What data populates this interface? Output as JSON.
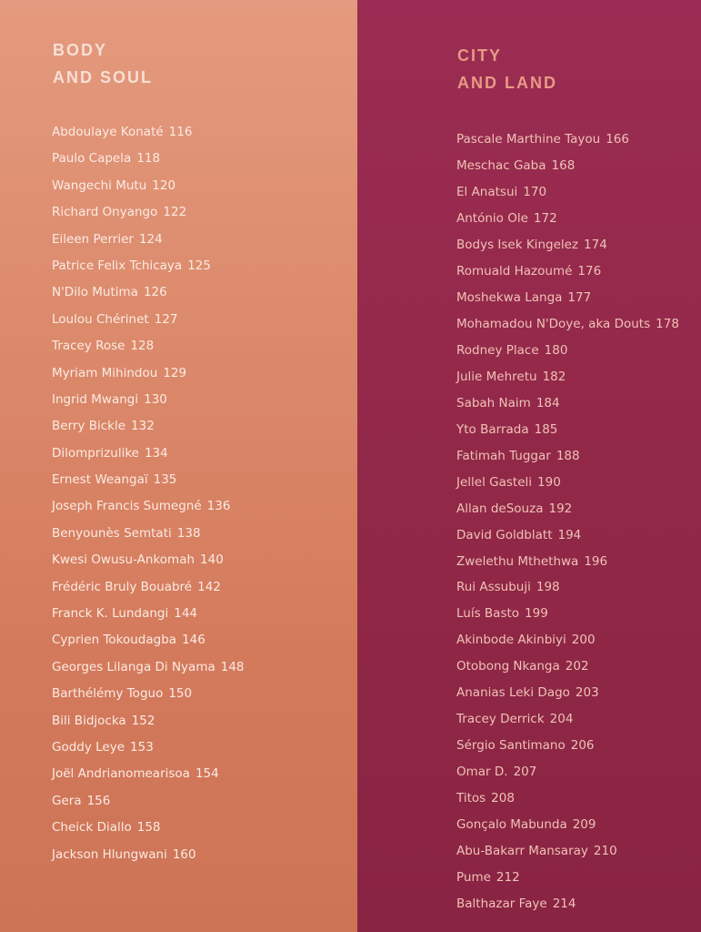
{
  "left_column": {
    "title_line1": "BODY",
    "title_line2": "AND SOUL",
    "entries": [
      {
        "name": "Abdoulaye Konaté",
        "page": "116"
      },
      {
        "name": "Paulo Capela",
        "page": "118"
      },
      {
        "name": "Wangechi Mutu",
        "page": "120"
      },
      {
        "name": "Richard Onyango",
        "page": "122"
      },
      {
        "name": "Eileen Perrier",
        "page": "124"
      },
      {
        "name": "Patrice Felix Tchicaya",
        "page": "125"
      },
      {
        "name": "N'Dilo Mutima",
        "page": "126"
      },
      {
        "name": "Loulou Chérinet",
        "page": "127"
      },
      {
        "name": "Tracey Rose",
        "page": "128"
      },
      {
        "name": "Myriam Mihindou",
        "page": "129"
      },
      {
        "name": "Ingrid Mwangi",
        "page": "130"
      },
      {
        "name": "Berry Bickle",
        "page": "132"
      },
      {
        "name": "Dilomprizulike",
        "page": "134"
      },
      {
        "name": "Ernest Weangaï",
        "page": "135"
      },
      {
        "name": "Joseph Francis Sumegné",
        "page": "136"
      },
      {
        "name": "Benyounès Semtati",
        "page": "138"
      },
      {
        "name": "Kwesi Owusu-Ankomah",
        "page": "140"
      },
      {
        "name": "Frédéric Bruly Bouabré",
        "page": "142"
      },
      {
        "name": "Franck K. Lundangi",
        "page": "144"
      },
      {
        "name": "Cyprien Tokoudagba",
        "page": "146"
      },
      {
        "name": "Georges Lilanga Di Nyama",
        "page": "148"
      },
      {
        "name": "Barthélémy Toguo",
        "page": "150"
      },
      {
        "name": "Bili Bidjocka",
        "page": "152"
      },
      {
        "name": "Goddy Leye",
        "page": "153"
      },
      {
        "name": "Joël Andrianomearisoa",
        "page": "154"
      },
      {
        "name": "Gera",
        "page": "156"
      },
      {
        "name": "Cheick Diallo",
        "page": "158"
      },
      {
        "name": "Jackson Hlungwani",
        "page": "160"
      }
    ]
  },
  "right_column": {
    "title_line1": "CITY",
    "title_line2": "AND LAND",
    "entries": [
      {
        "name": "Pascale Marthine Tayou",
        "page": "166"
      },
      {
        "name": "Meschac Gaba",
        "page": "168"
      },
      {
        "name": "El Anatsui",
        "page": "170"
      },
      {
        "name": "António Ole",
        "page": "172"
      },
      {
        "name": "Bodys Isek Kingelez",
        "page": "174"
      },
      {
        "name": "Romuald Hazoumé",
        "page": "176"
      },
      {
        "name": "Moshekwa Langa",
        "page": "177"
      },
      {
        "name": "Mohamadou N'Doye, aka Douts",
        "page": "178"
      },
      {
        "name": "Rodney Place",
        "page": "180"
      },
      {
        "name": "Julie Mehretu",
        "page": "182"
      },
      {
        "name": "Sabah Naim",
        "page": "184"
      },
      {
        "name": "Yto Barrada",
        "page": "185"
      },
      {
        "name": "Fatimah Tuggar",
        "page": "188"
      },
      {
        "name": "Jellel Gasteli",
        "page": "190"
      },
      {
        "name": "Allan deSouza",
        "page": "192"
      },
      {
        "name": "David Goldblatt",
        "page": "194"
      },
      {
        "name": "Zwelethu Mthethwa",
        "page": "196"
      },
      {
        "name": "Rui Assubuji",
        "page": "198"
      },
      {
        "name": "Luís Basto",
        "page": "199"
      },
      {
        "name": "Akinbode Akinbiyi",
        "page": "200"
      },
      {
        "name": "Otobong Nkanga",
        "page": "202"
      },
      {
        "name": "Ananias Leki Dago",
        "page": "203"
      },
      {
        "name": "Tracey Derrick",
        "page": "204"
      },
      {
        "name": "Sérgio Santimano",
        "page": "206"
      },
      {
        "name": "Omar D.",
        "page": "207"
      },
      {
        "name": "Titos",
        "page": "208"
      },
      {
        "name": "Gonçalo Mabunda",
        "page": "209"
      },
      {
        "name": "Abu-Bakarr Mansaray",
        "page": "210"
      },
      {
        "name": "Pume",
        "page": "212"
      },
      {
        "name": "Balthazar Faye",
        "page": "214"
      }
    ]
  },
  "colors": {
    "left_panel_bg": "#d8825f",
    "right_panel_bg": "#922848",
    "left_heading": "#f7dfd4",
    "right_heading": "#e79a86",
    "left_text": "#fbebe3",
    "right_text": "#f0c2b6"
  }
}
